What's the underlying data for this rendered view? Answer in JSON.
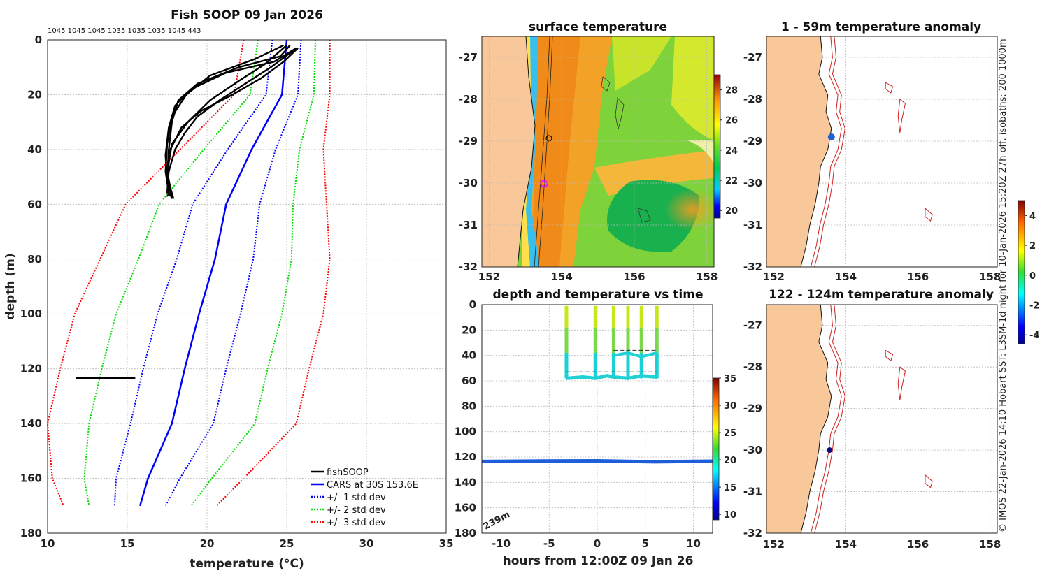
{
  "footnote": "© IMOS 22-Jan-2026 14:10 Hobart SST: L3SM-1d night for 10-Jan-2026 15:20Z 27h off. isobaths: 200  1000m",
  "colors": {
    "fish": "#000000",
    "cars": "#0000ff",
    "std1": "#0000ff",
    "std2": "#00dd00",
    "std3": "#ff0000",
    "land": "#f9c89a"
  },
  "chart_data": [
    {
      "type": "line",
      "id": "profile",
      "title": "Fish SOOP 09 Jan 2026",
      "subtitle": "1045 1045 1045 1035 1035 1035 1045 443",
      "xlabel": "temperature (°C)",
      "ylabel": "depth (m)",
      "xlim": [
        10,
        35
      ],
      "ylim": [
        180,
        0
      ],
      "xticks": [
        "10",
        "15",
        "20",
        "25",
        "30",
        "35"
      ],
      "yticks": [
        "0",
        "20",
        "40",
        "60",
        "80",
        "100",
        "120",
        "140",
        "160",
        "180"
      ],
      "legend": [
        "fishSOOP",
        "CARS at 30S 153.6E",
        "+/- 1 std dev",
        "+/- 2 std dev",
        "+/- 3 std dev"
      ],
      "legend_position": "bottom-right",
      "cars_depth": [
        0,
        20,
        40,
        60,
        80,
        100,
        120,
        140,
        160,
        170
      ],
      "cars_temp": [
        25.0,
        24.7,
        22.8,
        21.2,
        20.5,
        19.5,
        18.6,
        17.8,
        16.3,
        15.8
      ],
      "std_sigma": [
        0.9,
        1.0,
        1.5,
        2.1,
        2.4,
        2.6,
        2.6,
        2.6,
        2.0,
        1.6
      ],
      "fish_casts": [
        {
          "temp": [
            25.2,
            24.6,
            22.0,
            19.4,
            18.2,
            17.8,
            17.6,
            17.5,
            17.6
          ],
          "depth": [
            2,
            6,
            10,
            16,
            22,
            30,
            40,
            50,
            57
          ]
        },
        {
          "temp": [
            25.6,
            24.2,
            21.2,
            19.0,
            18.0,
            17.6,
            17.4,
            17.5,
            17.8
          ],
          "depth": [
            3,
            8,
            12,
            18,
            24,
            32,
            42,
            52,
            58
          ]
        },
        {
          "temp": [
            24.8,
            23.0,
            20.2,
            18.7,
            17.8,
            17.5,
            17.4,
            17.6
          ],
          "depth": [
            2,
            7,
            13,
            20,
            28,
            38,
            48,
            56
          ]
        },
        {
          "temp": [
            25.4,
            24.0,
            22.4,
            20.8,
            19.4,
            18.6,
            18.0,
            17.6,
            17.5
          ],
          "depth": [
            4,
            10,
            16,
            22,
            28,
            34,
            40,
            48,
            56
          ]
        },
        {
          "temp": [
            25.0,
            23.6,
            22.0,
            20.2,
            18.8,
            17.8,
            17.5,
            17.8
          ],
          "depth": [
            2,
            9,
            15,
            22,
            30,
            38,
            48,
            57
          ]
        },
        {
          "temp": [
            25.7,
            24.8,
            23.4,
            21.6,
            19.6,
            18.4,
            17.7,
            17.5,
            17.9
          ],
          "depth": [
            3,
            8,
            14,
            20,
            26,
            32,
            40,
            50,
            58
          ]
        }
      ],
      "fish_deep": {
        "temp": [
          11.8,
          15.5
        ],
        "depth": [
          123.5,
          123.5
        ]
      }
    },
    {
      "type": "heatmap",
      "id": "sst_map",
      "title": "surface temperature",
      "xticks": [
        "152",
        "154",
        "156",
        "158"
      ],
      "yticks": [
        "-27",
        "-28",
        "-29",
        "-30",
        "-31",
        "-32"
      ],
      "colorbar_ticks": [
        "20",
        "22",
        "24",
        "26",
        "28"
      ],
      "colorbar_range": [
        19.5,
        29
      ]
    },
    {
      "type": "scatter",
      "id": "time_depth",
      "title": "depth and temperature vs time",
      "xlabel": "hours from 12:00Z 09 Jan 26",
      "xlim": [
        -12,
        12
      ],
      "ylim": [
        180,
        0
      ],
      "xticks": [
        "-10",
        "-5",
        "0",
        "5",
        "10"
      ],
      "yticks": [
        "0",
        "20",
        "40",
        "60",
        "80",
        "100",
        "120",
        "140",
        "160",
        "180"
      ],
      "colorbar_ticks": [
        "10",
        "15",
        "20",
        "25",
        "30",
        "35"
      ],
      "colorbar_range": [
        9,
        35
      ],
      "annotation": "239m",
      "casts_hours": [
        -3.2,
        -0.2,
        1.7,
        3.2,
        4.6,
        6.2
      ],
      "deep_line": {
        "x": [
          -12,
          -6,
          0,
          6,
          12
        ],
        "depth": [
          123.5,
          123.2,
          123.0,
          123.8,
          123.3
        ]
      }
    },
    {
      "type": "scatter",
      "id": "anom_shallow",
      "title": "1 - 59m temperature anomaly",
      "xticks": [
        "152",
        "154",
        "156",
        "158"
      ],
      "yticks": [
        "-27",
        "-28",
        "-29",
        "-30",
        "-31",
        "-32"
      ],
      "point": {
        "lon": 153.6,
        "lat": -28.9
      },
      "colorbar_ticks": [
        "-4",
        "-2",
        "0",
        "2",
        "4"
      ],
      "colorbar_range": [
        -4.6,
        5
      ]
    },
    {
      "type": "scatter",
      "id": "anom_deep",
      "title": "122 - 124m temperature anomaly",
      "xticks": [
        "152",
        "154",
        "156",
        "158"
      ],
      "yticks": [
        "-27",
        "-28",
        "-29",
        "-30",
        "-31",
        "-32"
      ],
      "point": {
        "lon": 153.55,
        "lat": -30.0
      }
    }
  ]
}
